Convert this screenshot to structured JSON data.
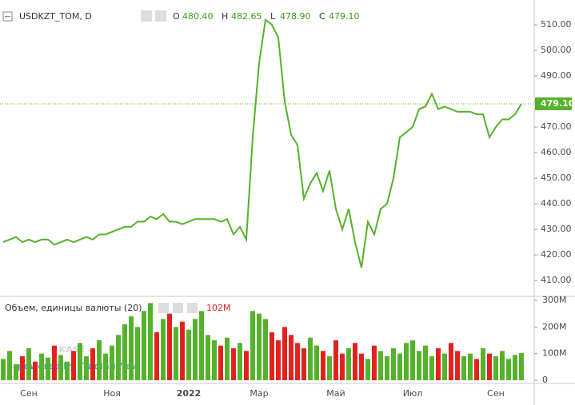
{
  "chart_data": [
    {
      "type": "line",
      "title": "USDKZT_TOM, D",
      "color": "#57b12a",
      "legend": {
        "labels": [
          "O",
          "H",
          "L",
          "C"
        ],
        "values": [
          480.4,
          482.65,
          478.9,
          479.1
        ],
        "value_labels": [
          "480.40",
          "482.65",
          "478.90",
          "479.10"
        ]
      },
      "last_value_label": "479.10",
      "categories": [
        null,
        null,
        null,
        null,
        "Сен",
        null,
        null,
        null,
        null,
        null,
        null,
        null,
        null,
        null,
        null,
        null,
        null,
        "Ноя",
        null,
        null,
        null,
        null,
        null,
        null,
        null,
        null,
        null,
        null,
        null,
        "2022",
        null,
        null,
        null,
        null,
        null,
        null,
        null,
        null,
        null,
        null,
        "Мар",
        null,
        null,
        null,
        null,
        null,
        null,
        null,
        null,
        null,
        null,
        null,
        "Май",
        null,
        null,
        null,
        null,
        null,
        null,
        null,
        null,
        null,
        null,
        null,
        "Июл",
        null,
        null,
        null,
        null,
        null,
        null,
        null,
        null,
        null,
        null,
        null,
        null,
        "Сен",
        null,
        null,
        null,
        null
      ],
      "values": [
        425,
        426,
        427,
        425,
        426,
        425,
        426,
        426,
        424,
        425,
        426,
        425,
        426,
        427,
        426,
        428,
        428,
        429,
        430,
        431,
        431,
        433,
        433,
        435,
        434,
        436,
        433,
        433,
        432,
        433,
        434,
        434,
        434,
        434,
        433,
        434,
        428,
        431,
        426,
        466,
        495,
        512,
        510,
        505,
        480,
        467,
        463,
        442,
        448,
        452,
        445,
        453,
        438,
        430,
        438,
        425,
        415,
        433,
        428,
        438,
        440,
        450,
        466,
        468,
        470,
        477,
        478,
        483,
        477,
        478,
        477,
        476,
        476,
        476,
        475,
        475,
        466,
        470,
        473,
        473,
        475,
        479.1
      ],
      "ylim": [
        404.1,
        519.7
      ],
      "yticks": [
        {
          "value": 410,
          "label": "410.00"
        },
        {
          "value": 420,
          "label": "420.00"
        },
        {
          "value": 430,
          "label": "430.00"
        },
        {
          "value": 440,
          "label": "440.00"
        },
        {
          "value": 450,
          "label": "450.00"
        },
        {
          "value": 460,
          "label": "460.00"
        },
        {
          "value": 470,
          "label": "470.00"
        },
        {
          "value": 480,
          "label": "480.00"
        },
        {
          "value": 490,
          "label": "490.00"
        },
        {
          "value": 500,
          "label": "500.00"
        },
        {
          "value": 510,
          "label": "510.00"
        }
      ]
    },
    {
      "type": "bar",
      "title": "Объем, единицы валюты (20)",
      "last_value_label": "102M",
      "colors": {
        "up": "#55b22c",
        "down": "#e2221f"
      },
      "values": [
        80,
        110,
        60,
        90,
        120,
        70,
        100,
        85,
        130,
        95,
        70,
        110,
        140,
        90,
        120,
        150,
        100,
        130,
        170,
        210,
        240,
        200,
        260,
        290,
        180,
        230,
        250,
        200,
        220,
        190,
        230,
        260,
        170,
        150,
        130,
        160,
        120,
        140,
        110,
        260,
        250,
        230,
        180,
        150,
        200,
        170,
        140,
        120,
        160,
        130,
        110,
        90,
        150,
        100,
        120,
        140,
        100,
        80,
        130,
        110,
        90,
        120,
        100,
        140,
        150,
        110,
        130,
        90,
        120,
        100,
        140,
        110,
        90,
        100,
        80,
        120,
        100,
        90,
        110,
        80,
        95,
        102
      ],
      "ylim": [
        -12,
        312
      ],
      "yticks": [
        0,
        {
          "value": 100,
          "label": "100M"
        },
        {
          "value": 200,
          "label": "200M"
        },
        {
          "value": 300,
          "label": "300M"
        }
      ]
    }
  ],
  "watermark": {
    "logo": "KASE",
    "text": "powered by TradingView"
  }
}
